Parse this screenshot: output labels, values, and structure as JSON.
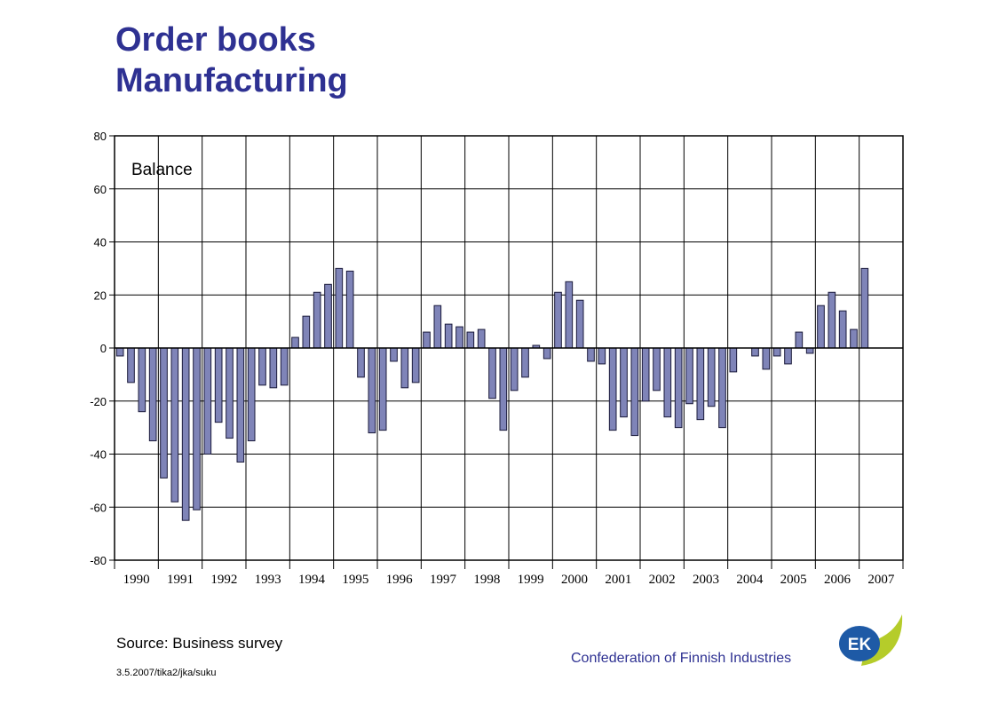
{
  "slide": {
    "title_line1": "Order books",
    "title_line2": "Manufacturing",
    "source": "Source: Business survey",
    "reference": "3.5.2007/tika2/jka/suku",
    "organization": "Confederation of Finnish Industries",
    "logo_text": "EK"
  },
  "colors": {
    "title": "#2e3192",
    "bar_fill": "#7f84b8",
    "bar_stroke": "#1a1a3a",
    "logo_green": "#b5cc2a",
    "logo_blue": "#1e5aa6"
  },
  "chart_data": {
    "type": "bar",
    "title": "",
    "annotation": "Balance",
    "xlabel": "",
    "ylabel": "",
    "ylim": [
      -80,
      80
    ],
    "yticks": [
      80,
      60,
      40,
      20,
      0,
      -20,
      -40,
      -60,
      -80
    ],
    "years": [
      "1990",
      "1991",
      "1992",
      "1993",
      "1994",
      "1995",
      "1996",
      "1997",
      "1998",
      "1999",
      "2000",
      "2001",
      "2002",
      "2003",
      "2004",
      "2005",
      "2006",
      "2007"
    ],
    "frequency": "quarterly",
    "start": "1990 Q1",
    "grid": true,
    "legend": "none",
    "values": [
      -3,
      -13,
      -24,
      -35,
      -49,
      -58,
      -65,
      -61,
      -40,
      -28,
      -34,
      -43,
      -35,
      -14,
      -15,
      -14,
      4,
      12,
      21,
      24,
      30,
      29,
      -11,
      -32,
      -31,
      -5,
      -15,
      -13,
      6,
      16,
      9,
      8,
      6,
      7,
      -19,
      -31,
      -16,
      -11,
      1,
      -4,
      21,
      25,
      18,
      -5,
      -6,
      -31,
      -26,
      -33,
      -20,
      -16,
      -26,
      -30,
      -21,
      -27,
      -22,
      -30,
      -9,
      0,
      -3,
      -8,
      -3,
      -6,
      6,
      -2,
      16,
      21,
      14,
      7,
      30
    ]
  }
}
